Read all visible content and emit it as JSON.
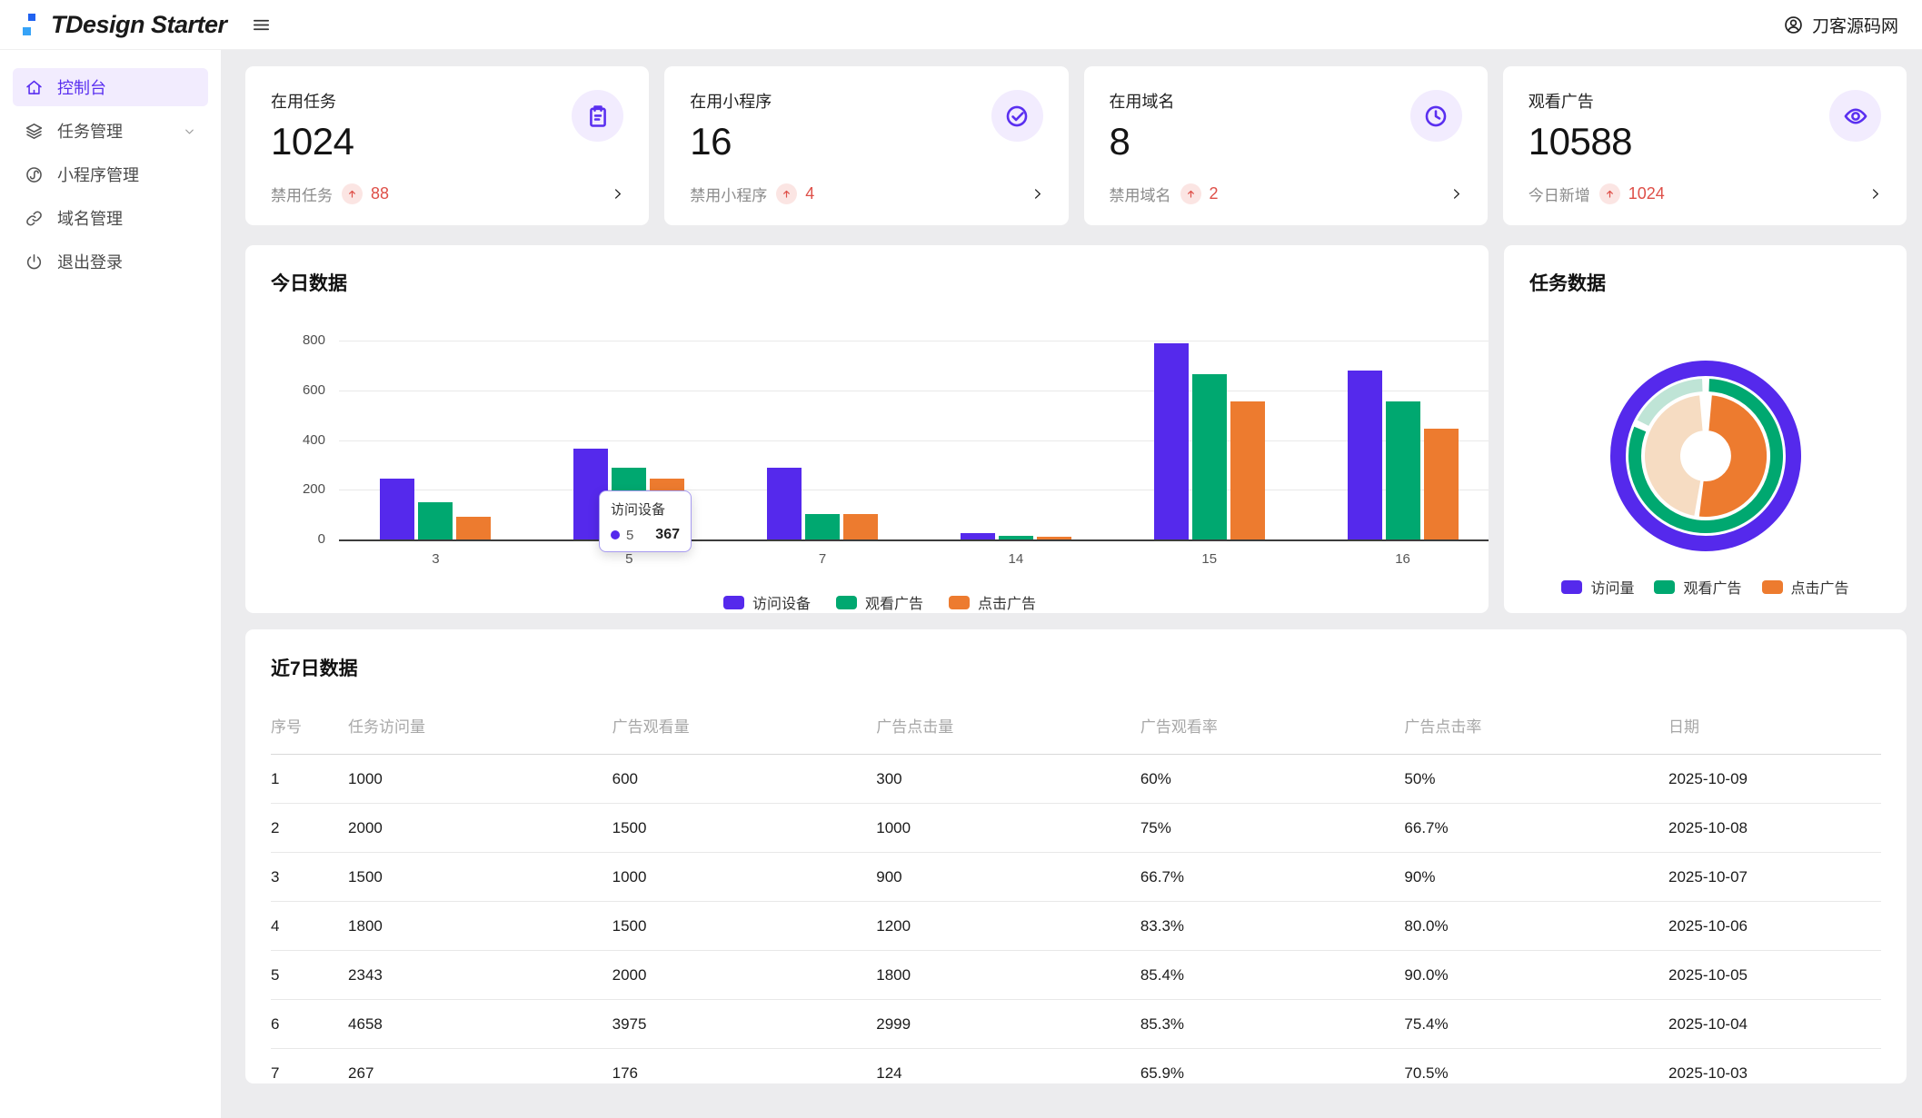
{
  "header": {
    "logo_text": "TDesign Starter",
    "user_name": "刀客源码网"
  },
  "sidebar": {
    "items": [
      {
        "id": "console",
        "label": "控制台",
        "icon": "home-icon",
        "active": true,
        "has_submenu": false
      },
      {
        "id": "task-management",
        "label": "任务管理",
        "icon": "layers-icon",
        "active": false,
        "has_submenu": true
      },
      {
        "id": "miniprogram-management",
        "label": "小程序管理",
        "icon": "miniprogram-icon",
        "active": false,
        "has_submenu": false
      },
      {
        "id": "domain-management",
        "label": "域名管理",
        "icon": "link-icon",
        "active": false,
        "has_submenu": false
      },
      {
        "id": "logout",
        "label": "退出登录",
        "icon": "power-icon",
        "active": false,
        "has_submenu": false
      }
    ]
  },
  "stat_cards": [
    {
      "id": "active-tasks",
      "title": "在用任务",
      "value": "1024",
      "icon": "clipboard-icon",
      "footer_label": "禁用任务",
      "footer_value": "88"
    },
    {
      "id": "active-miniprograms",
      "title": "在用小程序",
      "value": "16",
      "icon": "check-circle-icon",
      "footer_label": "禁用小程序",
      "footer_value": "4"
    },
    {
      "id": "active-domains",
      "title": "在用域名",
      "value": "8",
      "icon": "clock-icon",
      "footer_label": "禁用域名",
      "footer_value": "2"
    },
    {
      "id": "watched-ads",
      "title": "观看广告",
      "value": "10588",
      "icon": "eye-icon",
      "footer_label": "今日新增",
      "footer_value": "1024"
    }
  ],
  "chart_data": [
    {
      "type": "bar",
      "title": "今日数据",
      "categories": [
        "3",
        "5",
        "7",
        "14",
        "15",
        "16"
      ],
      "series": [
        {
          "name": "访问设备",
          "color": "#5529ec",
          "values": [
            245,
            367,
            290,
            25,
            790,
            680
          ]
        },
        {
          "name": "观看广告",
          "color": "#00a870",
          "values": [
            148,
            290,
            103,
            15,
            665,
            555
          ]
        },
        {
          "name": "点击广告",
          "color": "#ed7b2f",
          "values": [
            90,
            245,
            103,
            10,
            555,
            445
          ]
        }
      ],
      "ylim": [
        0,
        800
      ],
      "yticks": [
        0,
        200,
        400,
        600,
        800
      ],
      "grid": true,
      "legend_position": "bottom",
      "tooltip": {
        "series": "访问设备",
        "category": "5",
        "value": "367"
      }
    },
    {
      "type": "pie",
      "title": "任务数据",
      "legend_position": "bottom",
      "legend": [
        {
          "label": "访问量",
          "color": "#5529ec"
        },
        {
          "label": "观看广告",
          "color": "#00a870"
        },
        {
          "label": "点击广告",
          "color": "#ed7b2f"
        }
      ],
      "rings": [
        {
          "name": "访问量",
          "r_out": 105,
          "r_in": 88,
          "segments": [
            {
              "color": "#5529ec",
              "from": 0,
              "to": 360
            }
          ]
        },
        {
          "name": "观看广告",
          "r_out": 86,
          "r_in": 70,
          "segments": [
            {
              "color": "#00a870",
              "from": 2,
              "to": 293
            },
            {
              "color": "#bfe4d6",
              "from": 297,
              "to": 358
            }
          ]
        },
        {
          "name": "点击广告",
          "r_out": 68,
          "r_in": 27,
          "segments": [
            {
              "color": "#ed7b2f",
              "from": 5,
              "to": 187
            },
            {
              "color": "#f6dcc2",
              "from": 190,
              "to": 355
            }
          ]
        }
      ]
    }
  ],
  "table": {
    "title": "近7日数据",
    "columns": [
      "序号",
      "任务访问量",
      "广告观看量",
      "广告点击量",
      "广告观看率",
      "广告点击率",
      "日期"
    ],
    "rows": [
      [
        "1",
        "1000",
        "600",
        "300",
        "60%",
        "50%",
        "2025-10-09"
      ],
      [
        "2",
        "2000",
        "1500",
        "1000",
        "75%",
        "66.7%",
        "2025-10-08"
      ],
      [
        "3",
        "1500",
        "1000",
        "900",
        "66.7%",
        "90%",
        "2025-10-07"
      ],
      [
        "4",
        "1800",
        "1500",
        "1200",
        "83.3%",
        "80.0%",
        "2025-10-06"
      ],
      [
        "5",
        "2343",
        "2000",
        "1800",
        "85.4%",
        "90.0%",
        "2025-10-05"
      ],
      [
        "6",
        "4658",
        "3975",
        "2999",
        "85.3%",
        "75.4%",
        "2025-10-04"
      ],
      [
        "7",
        "267",
        "176",
        "124",
        "65.9%",
        "70.5%",
        "2025-10-03"
      ]
    ]
  },
  "colors": {
    "brand": "#5a2ff0",
    "brand_light_bg": "#f2ecfe",
    "success": "#00a870",
    "warning": "#ed7b2f",
    "error": "#de4f48",
    "error_light_bg": "#fbe5e3",
    "page_bg": "#ececee",
    "card_bg": "#ffffff",
    "logo_square_top": "#2062f0",
    "logo_square_bottom": "#36a3f7"
  }
}
